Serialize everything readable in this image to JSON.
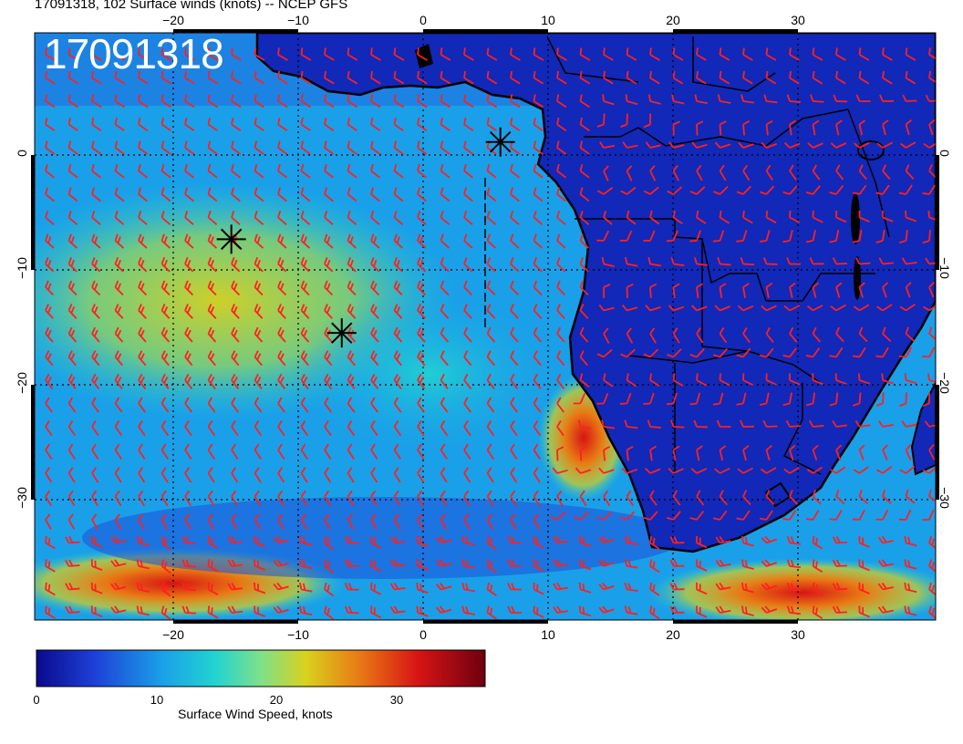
{
  "title": "17091318, 102 Surface winds (knots) -- NCEP GFS",
  "stamp": "17091318",
  "lon_ticks_top": [
    "−20",
    "−10",
    "0",
    "10",
    "20",
    "30"
  ],
  "lon_ticks_bottom": [
    "−20",
    "−10",
    "0",
    "10",
    "20",
    "30"
  ],
  "lat_ticks_left": [
    "0",
    "−10",
    "−20",
    "−30"
  ],
  "lat_ticks_right": [
    "0",
    "−10",
    "−20",
    "−30"
  ],
  "colorbar": {
    "title": "Surface Wind Speed, knots",
    "ticks": [
      "0",
      "10",
      "20",
      "30"
    ],
    "range": [
      0,
      37
    ],
    "colors": [
      "#0a0a8c",
      "#1e40d8",
      "#1aa0e8",
      "#22d4d0",
      "#7fe08a",
      "#d8d21e",
      "#e87a14",
      "#d81414",
      "#6e0010"
    ]
  },
  "map": {
    "lon_range": [
      -30,
      41
    ],
    "lat_range": [
      -40,
      9.5
    ],
    "barb_color": "#ff2020",
    "markers": [
      {
        "name": "marker-1",
        "lon": 6.7,
        "lat": 0.3
      },
      {
        "name": "marker-2",
        "lon": -14.5,
        "lat": -7.9
      },
      {
        "name": "marker-3",
        "lon": -5.8,
        "lat": -15.8
      }
    ]
  }
}
